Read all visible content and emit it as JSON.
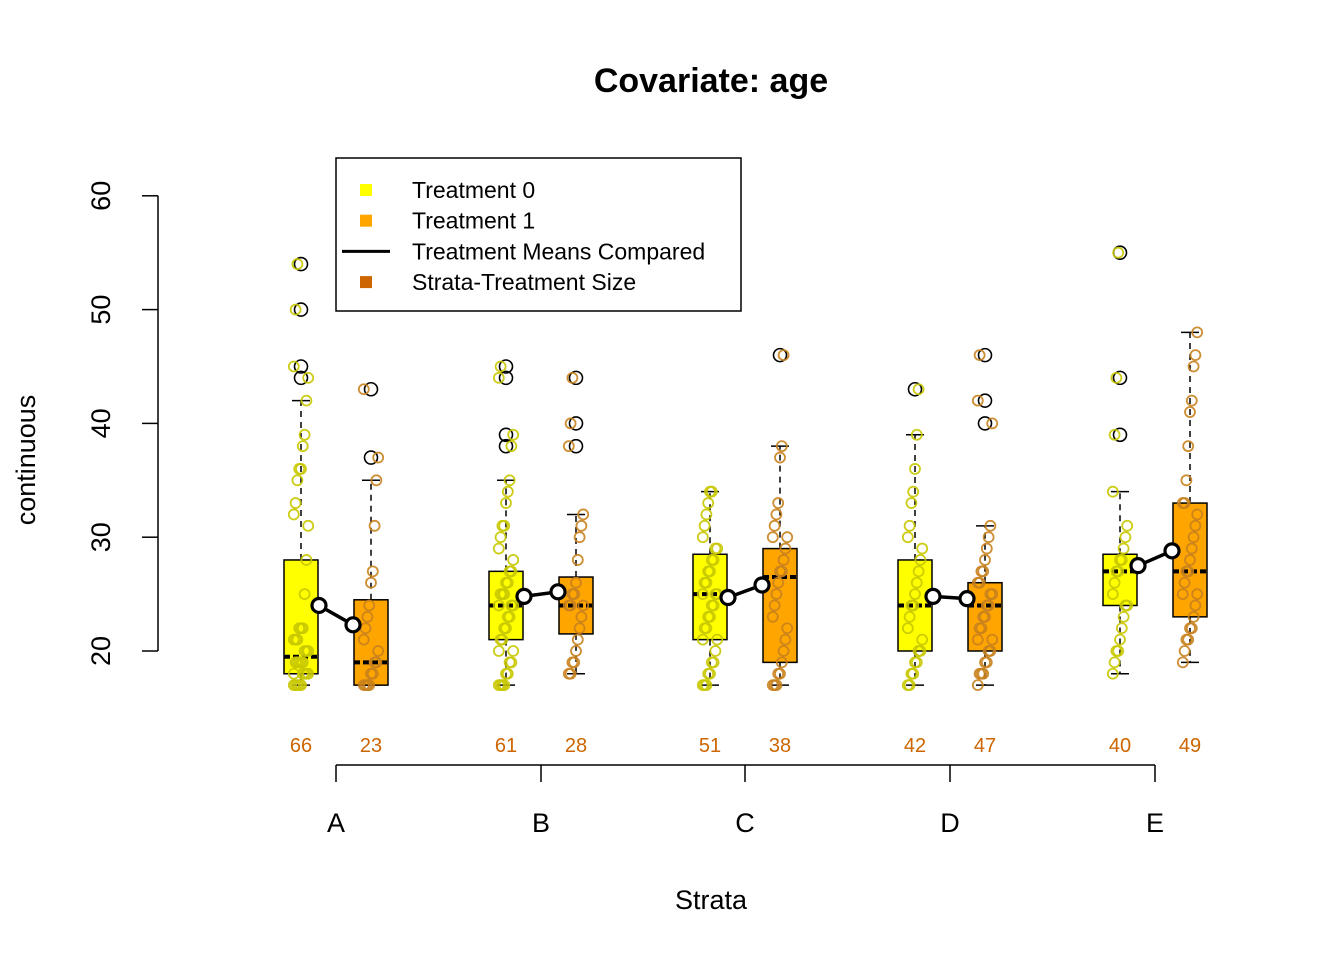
{
  "chart_data": {
    "type": "box",
    "title": "Covariate: age",
    "xlabel": "Strata",
    "ylabel": "continuous",
    "ylim": [
      15,
      60
    ],
    "yticks": [
      20,
      30,
      40,
      50,
      60
    ],
    "categories": [
      "A",
      "B",
      "C",
      "D",
      "E"
    ],
    "colors": {
      "treatment0": "#ffff00",
      "treatment1": "#ffa500",
      "points0": "#c8c800",
      "points1": "#c8821e",
      "size_text": "#cd6600",
      "mean_line": "#000000"
    },
    "legend": {
      "position": "top-left",
      "items": [
        {
          "label": "Treatment 0",
          "symbol": "square",
          "color": "#ffff00"
        },
        {
          "label": "Treatment 1",
          "symbol": "square",
          "color": "#ffa500"
        },
        {
          "label": "Treatment Means Compared",
          "symbol": "line",
          "color": "#000000"
        },
        {
          "label": "Strata-Treatment Size",
          "symbol": "square",
          "color": "#cd6600"
        }
      ]
    },
    "strata": [
      {
        "name": "A",
        "treatment0": {
          "n": "66",
          "min": 17,
          "q1": 18,
          "median": 19.5,
          "q3": 28,
          "max": 42,
          "mean": 24,
          "outliers": [
            44,
            45,
            50,
            54
          ],
          "points": [
            17,
            17,
            17,
            17,
            17,
            18,
            18,
            18,
            18,
            18,
            19,
            19,
            19,
            19,
            19,
            20,
            20,
            20,
            21,
            21,
            21,
            22,
            22,
            22,
            25,
            28,
            31,
            32,
            33,
            35,
            36,
            36,
            38,
            39,
            42,
            44,
            45,
            50,
            54
          ]
        },
        "treatment1": {
          "n": "23",
          "min": 17,
          "q1": 17,
          "median": 19,
          "q3": 24.5,
          "max": 35,
          "mean": 22.3,
          "outliers": [
            37,
            43
          ],
          "points": [
            17,
            17,
            17,
            17,
            18,
            18,
            19,
            19,
            20,
            21,
            22,
            23,
            24,
            26,
            27,
            31,
            35,
            37,
            43
          ]
        }
      },
      {
        "name": "B",
        "treatment0": {
          "n": "61",
          "min": 17,
          "q1": 21,
          "median": 24,
          "q3": 27,
          "max": 35,
          "mean": 24.8,
          "outliers": [
            38,
            39,
            44,
            45
          ],
          "points": [
            17,
            17,
            17,
            17,
            18,
            18,
            19,
            19,
            20,
            20,
            21,
            21,
            22,
            22,
            23,
            23,
            24,
            24,
            24,
            25,
            25,
            25,
            26,
            26,
            27,
            27,
            28,
            29,
            30,
            31,
            31,
            33,
            34,
            35,
            38,
            39,
            44,
            45
          ]
        },
        "treatment1": {
          "n": "28",
          "min": 18,
          "q1": 21.5,
          "median": 24,
          "q3": 26.5,
          "max": 32,
          "mean": 25.2,
          "outliers": [
            38,
            40,
            44
          ],
          "points": [
            18,
            18,
            19,
            19,
            20,
            21,
            22,
            23,
            24,
            24,
            24,
            25,
            25,
            26,
            28,
            30,
            31,
            32,
            38,
            40,
            44
          ]
        }
      },
      {
        "name": "C",
        "treatment0": {
          "n": "51",
          "min": 17,
          "q1": 21,
          "median": 25,
          "q3": 28.5,
          "max": 34,
          "mean": 24.7,
          "outliers": [],
          "points": [
            17,
            17,
            17,
            18,
            18,
            19,
            19,
            20,
            21,
            21,
            22,
            22,
            23,
            23,
            24,
            24,
            25,
            25,
            25,
            26,
            26,
            27,
            27,
            28,
            28,
            29,
            29,
            30,
            31,
            32,
            33,
            34,
            34
          ]
        },
        "treatment1": {
          "n": "38",
          "min": 17,
          "q1": 19,
          "median": 26.5,
          "q3": 29,
          "max": 38,
          "mean": 25.8,
          "outliers": [
            46
          ],
          "points": [
            17,
            17,
            17,
            18,
            18,
            19,
            20,
            21,
            22,
            23,
            24,
            25,
            26,
            27,
            27,
            28,
            29,
            30,
            30,
            31,
            32,
            33,
            37,
            38,
            46
          ]
        }
      },
      {
        "name": "D",
        "treatment0": {
          "n": "42",
          "min": 17,
          "q1": 20,
          "median": 24,
          "q3": 28,
          "max": 39,
          "mean": 24.8,
          "outliers": [
            43
          ],
          "points": [
            17,
            17,
            18,
            18,
            19,
            19,
            20,
            20,
            21,
            22,
            23,
            24,
            24,
            25,
            26,
            27,
            28,
            29,
            30,
            31,
            33,
            34,
            36,
            39,
            43
          ]
        },
        "treatment1": {
          "n": "47",
          "min": 17,
          "q1": 20,
          "median": 24,
          "q3": 26,
          "max": 31,
          "mean": 24.6,
          "outliers": [
            40,
            42,
            46
          ],
          "points": [
            17,
            18,
            18,
            18,
            19,
            19,
            20,
            20,
            21,
            21,
            22,
            22,
            23,
            23,
            24,
            24,
            25,
            25,
            26,
            26,
            27,
            27,
            28,
            29,
            30,
            31,
            40,
            42,
            46
          ]
        }
      },
      {
        "name": "E",
        "treatment0": {
          "n": "40",
          "min": 18,
          "q1": 24,
          "median": 27,
          "q3": 28.5,
          "max": 34,
          "mean": 27.5,
          "outliers": [
            39,
            44,
            55
          ],
          "points": [
            18,
            19,
            20,
            20,
            21,
            22,
            23,
            24,
            24,
            25,
            26,
            27,
            27,
            28,
            28,
            29,
            30,
            31,
            34,
            39,
            44,
            55
          ]
        },
        "treatment1": {
          "n": "49",
          "min": 19,
          "q1": 23,
          "median": 27,
          "q3": 33,
          "max": 48,
          "mean": 28.8,
          "outliers": [],
          "points": [
            19,
            20,
            21,
            21,
            22,
            22,
            23,
            24,
            25,
            25,
            26,
            27,
            27,
            28,
            29,
            30,
            31,
            32,
            33,
            33,
            35,
            38,
            41,
            42,
            45,
            46,
            48
          ]
        }
      }
    ]
  }
}
